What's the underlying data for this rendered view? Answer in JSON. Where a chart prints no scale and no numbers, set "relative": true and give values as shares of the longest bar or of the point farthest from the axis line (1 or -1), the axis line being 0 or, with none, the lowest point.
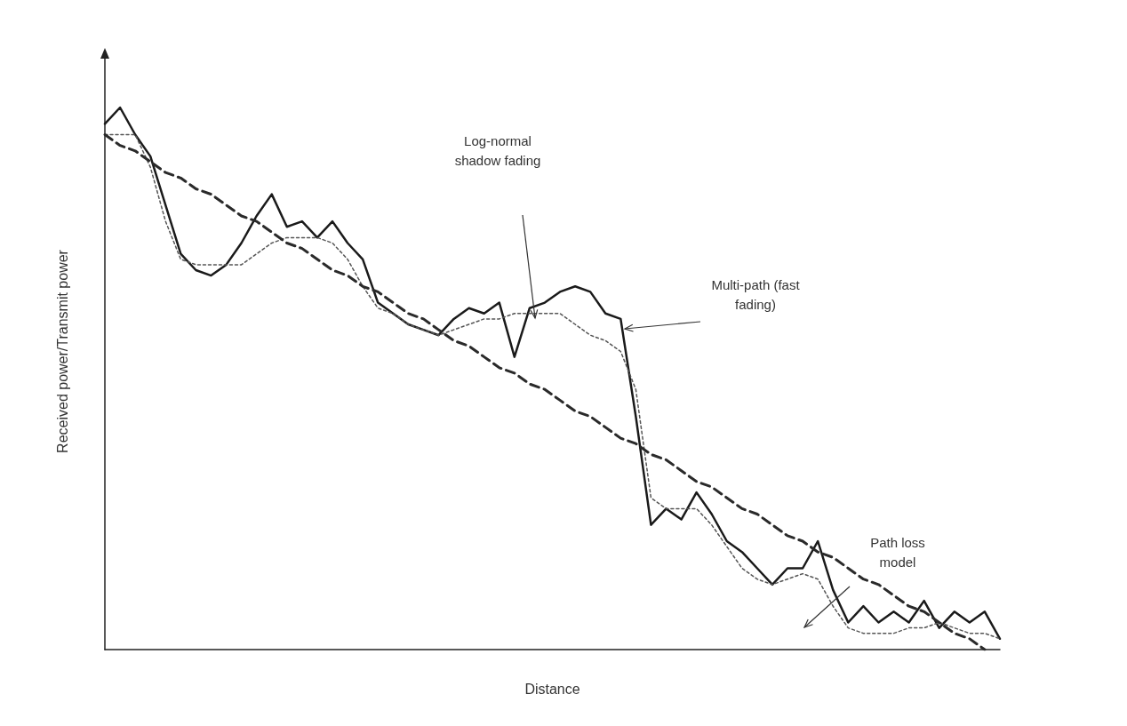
{
  "chart_data": {
    "type": "line",
    "relative": true,
    "xlabel": "Distance",
    "ylabel": "Received power/Transmit power",
    "grid": false,
    "marker": "none",
    "categories": [
      null,
      null,
      null,
      null,
      null,
      null,
      null,
      null,
      null,
      null,
      null,
      null,
      null,
      null,
      null,
      null,
      null,
      null,
      null,
      null,
      null,
      null,
      null,
      null,
      null,
      null,
      null,
      null,
      null,
      null,
      null,
      null,
      null,
      null,
      null,
      null,
      null,
      null,
      null,
      null,
      null,
      null,
      null,
      null,
      null,
      null,
      null,
      null,
      null,
      null,
      null,
      null,
      null,
      null,
      null,
      null,
      null,
      null,
      null,
      null
    ],
    "series": [
      {
        "color": "#1a1a1a",
        "line_style": "solid",
        "values": [
          0.97,
          1.0,
          0.95,
          0.91,
          0.82,
          0.73,
          0.7,
          0.69,
          0.71,
          0.75,
          0.8,
          0.84,
          0.78,
          0.79,
          0.76,
          0.79,
          0.75,
          0.72,
          0.64,
          0.62,
          0.6,
          0.59,
          0.58,
          0.61,
          0.63,
          0.62,
          0.64,
          0.54,
          0.63,
          0.64,
          0.66,
          0.67,
          0.66,
          0.62,
          0.61,
          0.43,
          0.23,
          0.26,
          0.24,
          0.29,
          0.25,
          0.2,
          0.18,
          0.15,
          0.12,
          0.15,
          0.15,
          0.2,
          0.11,
          0.05,
          0.08,
          0.05,
          0.07,
          0.05,
          0.09,
          0.04,
          0.07,
          0.05,
          0.07,
          0.02
        ]
      },
      {
        "color": "#555555",
        "line_style": "dotted",
        "values": [
          0.95,
          0.95,
          0.95,
          0.89,
          0.79,
          0.72,
          0.71,
          0.71,
          0.71,
          0.71,
          0.73,
          0.75,
          0.76,
          0.76,
          0.76,
          0.75,
          0.72,
          0.67,
          0.63,
          0.62,
          0.6,
          0.59,
          0.58,
          0.59,
          0.6,
          0.61,
          0.61,
          0.62,
          0.62,
          0.62,
          0.62,
          0.6,
          0.58,
          0.57,
          0.55,
          0.48,
          0.28,
          0.26,
          0.26,
          0.26,
          0.23,
          0.19,
          0.15,
          0.13,
          0.12,
          0.13,
          0.14,
          0.13,
          0.08,
          0.04,
          0.03,
          0.03,
          0.03,
          0.04,
          0.04,
          0.05,
          0.04,
          0.03,
          0.03,
          0.02
        ]
      },
      {
        "color": "#2a2a2a",
        "line_style": "dashed",
        "values": [
          0.95,
          0.93,
          0.92,
          0.9,
          0.88,
          0.87,
          0.85,
          0.84,
          0.82,
          0.8,
          0.79,
          0.77,
          0.75,
          0.74,
          0.72,
          0.7,
          0.69,
          0.67,
          0.66,
          0.64,
          0.62,
          0.61,
          0.59,
          0.57,
          0.56,
          0.54,
          0.52,
          0.51,
          0.49,
          0.48,
          0.46,
          0.44,
          0.43,
          0.41,
          0.39,
          0.38,
          0.36,
          0.35,
          0.33,
          0.31,
          0.3,
          0.28,
          0.26,
          0.25,
          0.23,
          0.21,
          0.2,
          0.18,
          0.17,
          0.15,
          0.13,
          0.12,
          0.1,
          0.08,
          0.07,
          0.05,
          0.03,
          0.02,
          0.0,
          null
        ]
      }
    ],
    "annotations": [
      "Log-normal shadow fading",
      "Multi-path (fast fading)",
      "Path loss model"
    ]
  }
}
